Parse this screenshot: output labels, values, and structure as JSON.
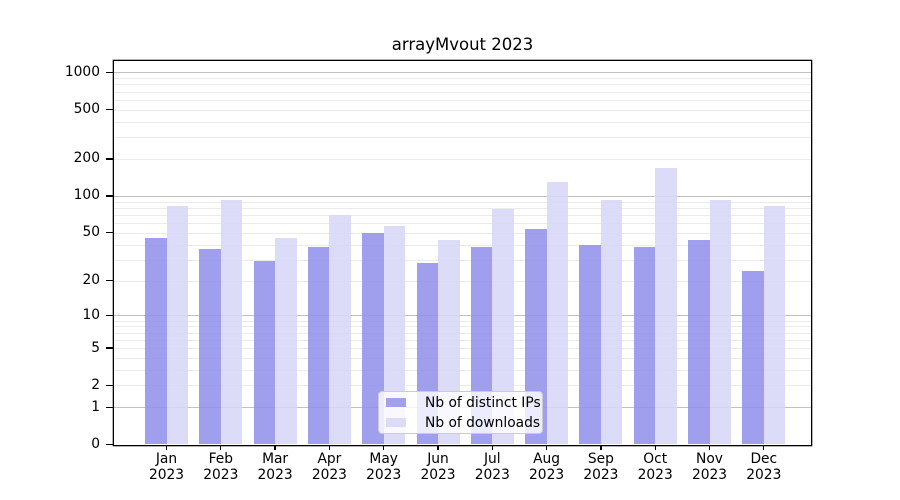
{
  "chart_data": {
    "type": "bar",
    "title": "arrayMvout 2023",
    "categories": [
      "Jan\n2023",
      "Feb\n2023",
      "Mar\n2023",
      "Apr\n2023",
      "May\n2023",
      "Jun\n2023",
      "Jul\n2023",
      "Aug\n2023",
      "Sep\n2023",
      "Oct\n2023",
      "Nov\n2023",
      "Dec\n2023"
    ],
    "series": [
      {
        "name": "Nb of distinct IPs",
        "color": "#a1a1ee",
        "fill": "rgba(146,146,236,0.88)",
        "values": [
          45,
          37,
          29,
          38,
          50,
          28,
          38,
          54,
          40,
          38,
          44,
          24
        ]
      },
      {
        "name": "Nb of downloads",
        "color": "#dcdcf8",
        "fill": "rgba(215,215,247,0.88)",
        "values": [
          83,
          93,
          45,
          70,
          57,
          44,
          78,
          130,
          93,
          168,
          93,
          83
        ]
      }
    ],
    "yscale": "log1p",
    "ylim": [
      0,
      1250
    ],
    "yticks": [
      0,
      1,
      2,
      5,
      10,
      20,
      50,
      100,
      200,
      500,
      1000
    ],
    "grid": {
      "major_values": [
        1,
        10,
        100,
        1000
      ],
      "minor_values": [
        2,
        3,
        4,
        5,
        6,
        7,
        8,
        9,
        20,
        30,
        40,
        50,
        60,
        70,
        80,
        90,
        200,
        300,
        400,
        500,
        600,
        700,
        800,
        900
      ],
      "major_color": "#c2c2c2",
      "minor_color": "#ebebeb"
    },
    "legend_position": "lower center",
    "axis_color": "#000000",
    "background_color": "#ffffff"
  }
}
